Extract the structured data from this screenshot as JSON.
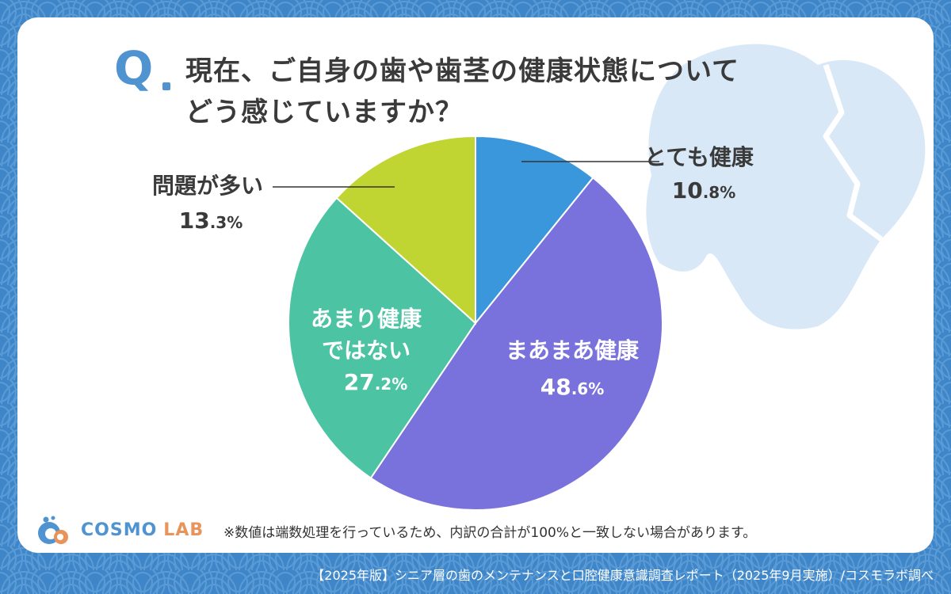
{
  "colors": {
    "background": "#3f86c9",
    "accent": "#4f93d0",
    "text": "#3a3a3a",
    "tooth": "#d6e7f7"
  },
  "question": {
    "mark": "Q",
    "line1": "現在、ご自身の歯や歯茎の健康状態について",
    "line2": "どう感じていますか？"
  },
  "chart_data": {
    "type": "pie",
    "slices": [
      {
        "label": "とても健康",
        "value": 10.8,
        "display_int": "10",
        "display_dec": ".8%",
        "color": "#3b97dc"
      },
      {
        "label": "まあまあ健康",
        "value": 48.6,
        "display_int": "48",
        "display_dec": ".6%",
        "color": "#7a72dc"
      },
      {
        "label": "あまり健康\nではない",
        "value": 27.2,
        "display_int": "27",
        "display_dec": ".2%",
        "color": "#4cc4a4"
      },
      {
        "label": "問題が多い",
        "value": 13.3,
        "display_int": "13",
        "display_dec": ".3%",
        "color": "#c1d532"
      }
    ],
    "start_angle_deg": 0,
    "direction": "clockwise"
  },
  "note": "※数値は端数処理を行っているため、内訳の合計が100%と一致しない場合があります。",
  "logo": {
    "part1": "COSMO",
    "part2": "LAB"
  },
  "source": "【2025年版】シニア層の歯のメンテナンスと口腔健康意識調査レポート（2025年9月実施）/コスモラボ調べ"
}
